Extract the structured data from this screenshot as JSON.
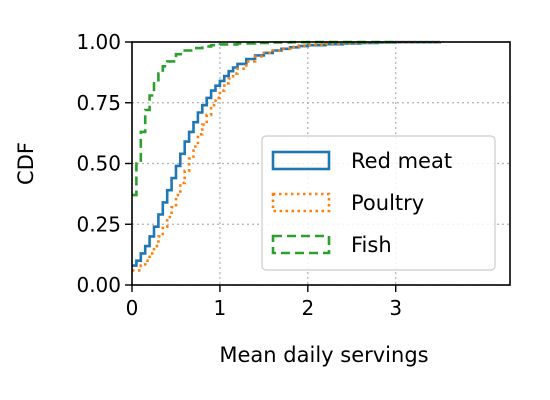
{
  "chart_data": {
    "type": "line",
    "title": "",
    "xlabel": "Mean daily servings",
    "ylabel": "CDF",
    "xlim": [
      0,
      4.3
    ],
    "ylim": [
      0,
      1
    ],
    "xticks": [
      0,
      1,
      2,
      3
    ],
    "yticks": [
      0,
      0.25,
      0.5,
      0.75,
      1
    ],
    "xtick_labels": [
      "0",
      "1",
      "2",
      "3"
    ],
    "ytick_labels": [
      "0.00",
      "0.25",
      "0.50",
      "0.75",
      "1.00"
    ],
    "grid": true,
    "legend_position": "lower-right",
    "series": [
      {
        "name": "Red meat",
        "style": "solid-step",
        "color": "#1f77b4",
        "x": [
          0,
          0.05,
          0.1,
          0.15,
          0.2,
          0.25,
          0.3,
          0.35,
          0.4,
          0.45,
          0.5,
          0.55,
          0.6,
          0.65,
          0.7,
          0.75,
          0.8,
          0.85,
          0.9,
          0.95,
          1.0,
          1.05,
          1.1,
          1.15,
          1.2,
          1.3,
          1.4,
          1.5,
          1.6,
          1.7,
          1.8,
          1.9,
          2.0,
          2.2,
          2.4,
          2.6,
          2.8,
          3.0,
          3.5
        ],
        "y": [
          0.08,
          0.1,
          0.13,
          0.16,
          0.2,
          0.24,
          0.29,
          0.34,
          0.39,
          0.44,
          0.49,
          0.54,
          0.59,
          0.63,
          0.67,
          0.71,
          0.74,
          0.77,
          0.8,
          0.82,
          0.84,
          0.86,
          0.88,
          0.895,
          0.91,
          0.93,
          0.945,
          0.955,
          0.965,
          0.972,
          0.978,
          0.983,
          0.987,
          0.991,
          0.994,
          0.996,
          0.998,
          0.999,
          1.0
        ]
      },
      {
        "name": "Poultry",
        "style": "dotted-step",
        "color": "#ff7f0e",
        "x": [
          0.05,
          0.1,
          0.15,
          0.2,
          0.25,
          0.3,
          0.35,
          0.4,
          0.45,
          0.5,
          0.55,
          0.6,
          0.65,
          0.7,
          0.75,
          0.8,
          0.85,
          0.9,
          0.95,
          1.0,
          1.05,
          1.1,
          1.15,
          1.2,
          1.3,
          1.4,
          1.5,
          1.6,
          1.7,
          1.8,
          1.9,
          2.0,
          2.2,
          2.4,
          2.6,
          2.8,
          3.0,
          3.5
        ],
        "y": [
          0.06,
          0.08,
          0.1,
          0.13,
          0.16,
          0.2,
          0.24,
          0.28,
          0.32,
          0.37,
          0.42,
          0.47,
          0.52,
          0.57,
          0.62,
          0.66,
          0.7,
          0.74,
          0.77,
          0.8,
          0.83,
          0.85,
          0.87,
          0.89,
          0.92,
          0.94,
          0.955,
          0.965,
          0.973,
          0.98,
          0.985,
          0.989,
          0.993,
          0.996,
          0.998,
          0.999,
          1.0,
          1.0
        ]
      },
      {
        "name": "Fish",
        "style": "dashed-step",
        "color": "#2ca02c",
        "x": [
          0,
          0.05,
          0.1,
          0.15,
          0.2,
          0.25,
          0.3,
          0.35,
          0.4,
          0.5,
          0.6,
          0.7,
          0.8,
          0.9,
          1.0,
          1.2,
          1.4,
          1.6,
          1.8,
          2.0,
          2.5,
          3.0
        ],
        "y": [
          0.37,
          0.5,
          0.63,
          0.72,
          0.78,
          0.83,
          0.87,
          0.9,
          0.92,
          0.95,
          0.965,
          0.975,
          0.982,
          0.987,
          0.99,
          0.994,
          0.996,
          0.998,
          0.999,
          0.9995,
          1.0,
          1.0
        ]
      }
    ]
  }
}
